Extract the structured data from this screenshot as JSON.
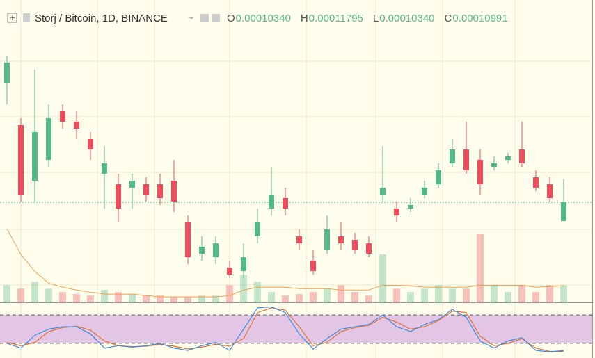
{
  "header": {
    "symbol": "Storj / Bitcoin, 1D, BINANCE",
    "ohlc": [
      {
        "label": "O",
        "value": "0.00010340"
      },
      {
        "label": "H",
        "value": "0.00011795"
      },
      {
        "label": "L",
        "value": "0.00010340"
      },
      {
        "label": "C",
        "value": "0.00010991"
      }
    ]
  },
  "chart_data": {
    "type": "candlestick",
    "up_color": "#53b987",
    "down_color": "#eb4d5c",
    "ma_color": "#f0a050",
    "k_color": "#3d8be0",
    "d_color": "#e0722e",
    "band_color": "#e3c6e6",
    "ylim": [
      7.521e-05,
      0.0001704
    ],
    "open": [
      0.00015112,
      0.00013666,
      0.00011738,
      0.00012461,
      0.00014148,
      0.00013786,
      0.00013184,
      0.00011979,
      0.00011617,
      0.00011497,
      0.00011617,
      0.00011617,
      0.00011738,
      0.00010292,
      9.207e-05,
      9.087e-05,
      8.725e-05,
      8.605e-05,
      9.81e-05,
      0.00010774,
      0.00011135,
      9.81e-05,
      8.966e-05,
      9.328e-05,
      9.81e-05,
      9.689e-05,
      9.569e-05,
      0.00011256,
      0.00010774,
      0.00010774,
      0.00011256,
      0.00011617,
      0.0001234,
      0.00012822,
      0.00012461,
      0.0001222,
      0.00012461,
      0.00012822,
      0.00011858,
      0.00011617,
      0.0001034
    ],
    "high": [
      0.00016076,
      0.00013907,
      0.00015594,
      0.00014389,
      0.00014389,
      0.00014148,
      0.00013425,
      0.00012943,
      0.00011979,
      0.00011979,
      0.00011858,
      0.00011979,
      0.00012461,
      0.00010533,
      9.81e-05,
      9.81e-05,
      8.966e-05,
      9.569e-05,
      0.00010774,
      0.0001222,
      0.00011497,
      0.00010051,
      9.328e-05,
      0.00010533,
      0.00010292,
      9.93e-05,
      9.81e-05,
      0.00012943,
      0.00011015,
      0.00011135,
      0.00011738,
      0.0001234,
      0.00013184,
      0.00013786,
      0.00012822,
      0.00012581,
      0.00012702,
      0.00013786,
      0.00012099,
      0.00011858,
      0.00011795
    ],
    "low": [
      0.00014389,
      0.00011015,
      0.00011015,
      0.0001222,
      0.00013545,
      0.00013184,
      0.00012461,
      0.00010774,
      0.00010292,
      0.00010774,
      0.00011015,
      0.00010894,
      0.00010653,
      8.846e-05,
      8.966e-05,
      8.846e-05,
      8.364e-05,
      8.364e-05,
      9.569e-05,
      0.00010533,
      0.00010533,
      9.328e-05,
      8.484e-05,
      9.207e-05,
      9.328e-05,
      9.207e-05,
      9.087e-05,
      0.00011015,
      0.00010292,
      0.00010653,
      0.00011135,
      0.00011497,
      0.0001222,
      0.00011979,
      0.00011256,
      0.00012099,
      0.0001234,
      0.0001222,
      0.00011376,
      0.00011015,
      0.0001034
    ],
    "close": [
      0.00015835,
      0.00011256,
      0.00013425,
      0.00013907,
      0.00013786,
      0.00013545,
      0.00012822,
      0.0001234,
      0.00010774,
      0.00011738,
      0.00011256,
      0.00011135,
      0.00011015,
      9.087e-05,
      9.448e-05,
      9.569e-05,
      8.484e-05,
      9.087e-05,
      0.00010292,
      0.00011256,
      0.00010774,
      9.569e-05,
      8.605e-05,
      0.00010051,
      9.569e-05,
      9.328e-05,
      9.207e-05,
      0.00011497,
      0.00010533,
      0.00010894,
      0.00011497,
      0.00012099,
      0.00012822,
      0.00012099,
      0.00011617,
      0.0001234,
      0.00012581,
      0.0001234,
      0.00011497,
      0.00011135,
      0.00010991
    ],
    "volume_ylim": [
      0,
      400
    ],
    "volume": [
      25,
      20,
      30,
      20,
      15,
      12,
      10,
      18,
      15,
      12,
      10,
      10,
      8,
      8,
      10,
      10,
      25,
      40,
      30,
      15,
      10,
      12,
      15,
      20,
      25,
      15,
      10,
      70,
      20,
      15,
      20,
      25,
      20,
      20,
      100,
      25,
      15,
      25,
      15,
      25,
      25
    ],
    "volume_ma": [
      107,
      70,
      45,
      28,
      22,
      18,
      15,
      12,
      12,
      12,
      10,
      8,
      8,
      8,
      8,
      8,
      10,
      18,
      22,
      22,
      22,
      20,
      20,
      20,
      18,
      18,
      18,
      25,
      25,
      24,
      22,
      22,
      22,
      22,
      25,
      25,
      25,
      25,
      22,
      23,
      24
    ],
    "stoch_ylim": [
      0,
      100
    ],
    "stoch_bands": [
      20,
      80
    ],
    "stoch_k": [
      20,
      10,
      37,
      50,
      55,
      55,
      40,
      10,
      15,
      12,
      15,
      20,
      10,
      5,
      15,
      22,
      5,
      50,
      95,
      97,
      85,
      40,
      8,
      30,
      50,
      55,
      60,
      80,
      55,
      45,
      60,
      70,
      92,
      75,
      25,
      10,
      25,
      32,
      5,
      2,
      5
    ],
    "stoch_d": [
      22,
      15,
      22,
      45,
      53,
      56,
      48,
      25,
      15,
      13,
      14,
      18,
      14,
      8,
      12,
      18,
      14,
      30,
      85,
      95,
      90,
      55,
      15,
      22,
      45,
      53,
      58,
      75,
      65,
      50,
      55,
      68,
      88,
      85,
      35,
      15,
      20,
      30,
      10,
      3,
      3
    ]
  }
}
